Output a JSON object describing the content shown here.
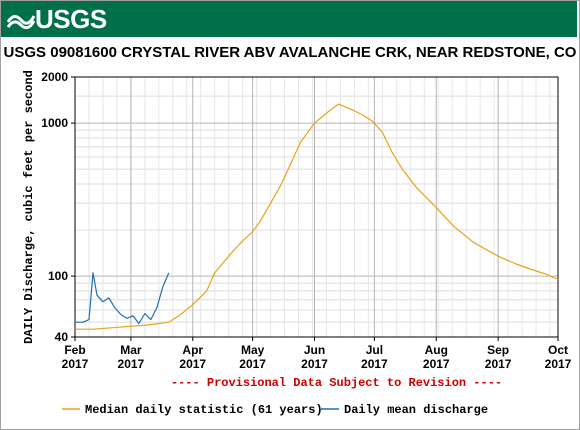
{
  "header": {
    "logo_text": "USGS",
    "title": "USGS 09081600 CRYSTAL RIVER ABV AVALANCHE CRK, NEAR REDSTONE, CO"
  },
  "chart_data": {
    "type": "line",
    "ylabel": "DAILY Discharge, cubic feet per second",
    "y_scale": "log",
    "ylim": [
      40,
      2000
    ],
    "y_ticks": [
      {
        "value": 40,
        "label": "40"
      },
      {
        "value": 100,
        "label": "100"
      },
      {
        "value": 1000,
        "label": "1000"
      },
      {
        "value": 2000,
        "label": "2000"
      }
    ],
    "x_range": [
      "2017-02-01",
      "2017-10-01"
    ],
    "x_ticks": [
      {
        "date": "2017-02-01",
        "month": "Feb",
        "year": "2017"
      },
      {
        "date": "2017-03-01",
        "month": "Mar",
        "year": "2017"
      },
      {
        "date": "2017-04-01",
        "month": "Apr",
        "year": "2017"
      },
      {
        "date": "2017-05-01",
        "month": "May",
        "year": "2017"
      },
      {
        "date": "2017-06-01",
        "month": "Jun",
        "year": "2017"
      },
      {
        "date": "2017-07-01",
        "month": "Jul",
        "year": "2017"
      },
      {
        "date": "2017-08-01",
        "month": "Aug",
        "year": "2017"
      },
      {
        "date": "2017-09-01",
        "month": "Sep",
        "year": "2017"
      },
      {
        "date": "2017-10-01",
        "month": "Oct",
        "year": "2017"
      }
    ],
    "grid": true,
    "provisional_note": "---- Provisional Data Subject to Revision ----",
    "series": [
      {
        "name": "Median daily statistic (61 years)",
        "color": "#e8a317",
        "points": [
          [
            "2017-02-01",
            45
          ],
          [
            "2017-02-10",
            45
          ],
          [
            "2017-02-20",
            46
          ],
          [
            "2017-03-01",
            47
          ],
          [
            "2017-03-10",
            48
          ],
          [
            "2017-03-20",
            50
          ],
          [
            "2017-03-25",
            55
          ],
          [
            "2017-04-01",
            65
          ],
          [
            "2017-04-08",
            80
          ],
          [
            "2017-04-12",
            105
          ],
          [
            "2017-04-20",
            140
          ],
          [
            "2017-04-27",
            175
          ],
          [
            "2017-05-01",
            195
          ],
          [
            "2017-05-05",
            230
          ],
          [
            "2017-05-10",
            300
          ],
          [
            "2017-05-15",
            390
          ],
          [
            "2017-05-20",
            540
          ],
          [
            "2017-05-25",
            750
          ],
          [
            "2017-06-01",
            1000
          ],
          [
            "2017-06-08",
            1190
          ],
          [
            "2017-06-13",
            1330
          ],
          [
            "2017-06-20",
            1220
          ],
          [
            "2017-06-25",
            1130
          ],
          [
            "2017-06-30",
            1030
          ],
          [
            "2017-07-05",
            870
          ],
          [
            "2017-07-10",
            640
          ],
          [
            "2017-07-15",
            500
          ],
          [
            "2017-07-22",
            380
          ],
          [
            "2017-08-01",
            280
          ],
          [
            "2017-08-10",
            210
          ],
          [
            "2017-08-20",
            165
          ],
          [
            "2017-09-01",
            135
          ],
          [
            "2017-09-10",
            120
          ],
          [
            "2017-09-20",
            108
          ],
          [
            "2017-09-25",
            103
          ],
          [
            "2017-10-01",
            95
          ]
        ]
      },
      {
        "name": "Daily mean discharge",
        "color": "#1e6fb3",
        "points": [
          [
            "2017-02-01",
            50
          ],
          [
            "2017-02-05",
            50
          ],
          [
            "2017-02-08",
            52
          ],
          [
            "2017-02-10",
            105
          ],
          [
            "2017-02-12",
            75
          ],
          [
            "2017-02-15",
            68
          ],
          [
            "2017-02-18",
            72
          ],
          [
            "2017-02-21",
            62
          ],
          [
            "2017-02-24",
            56
          ],
          [
            "2017-02-27",
            53
          ],
          [
            "2017-03-02",
            55
          ],
          [
            "2017-03-05",
            49
          ],
          [
            "2017-03-08",
            57
          ],
          [
            "2017-03-11",
            52
          ],
          [
            "2017-03-14",
            62
          ],
          [
            "2017-03-17",
            85
          ],
          [
            "2017-03-20",
            105
          ]
        ]
      }
    ]
  }
}
